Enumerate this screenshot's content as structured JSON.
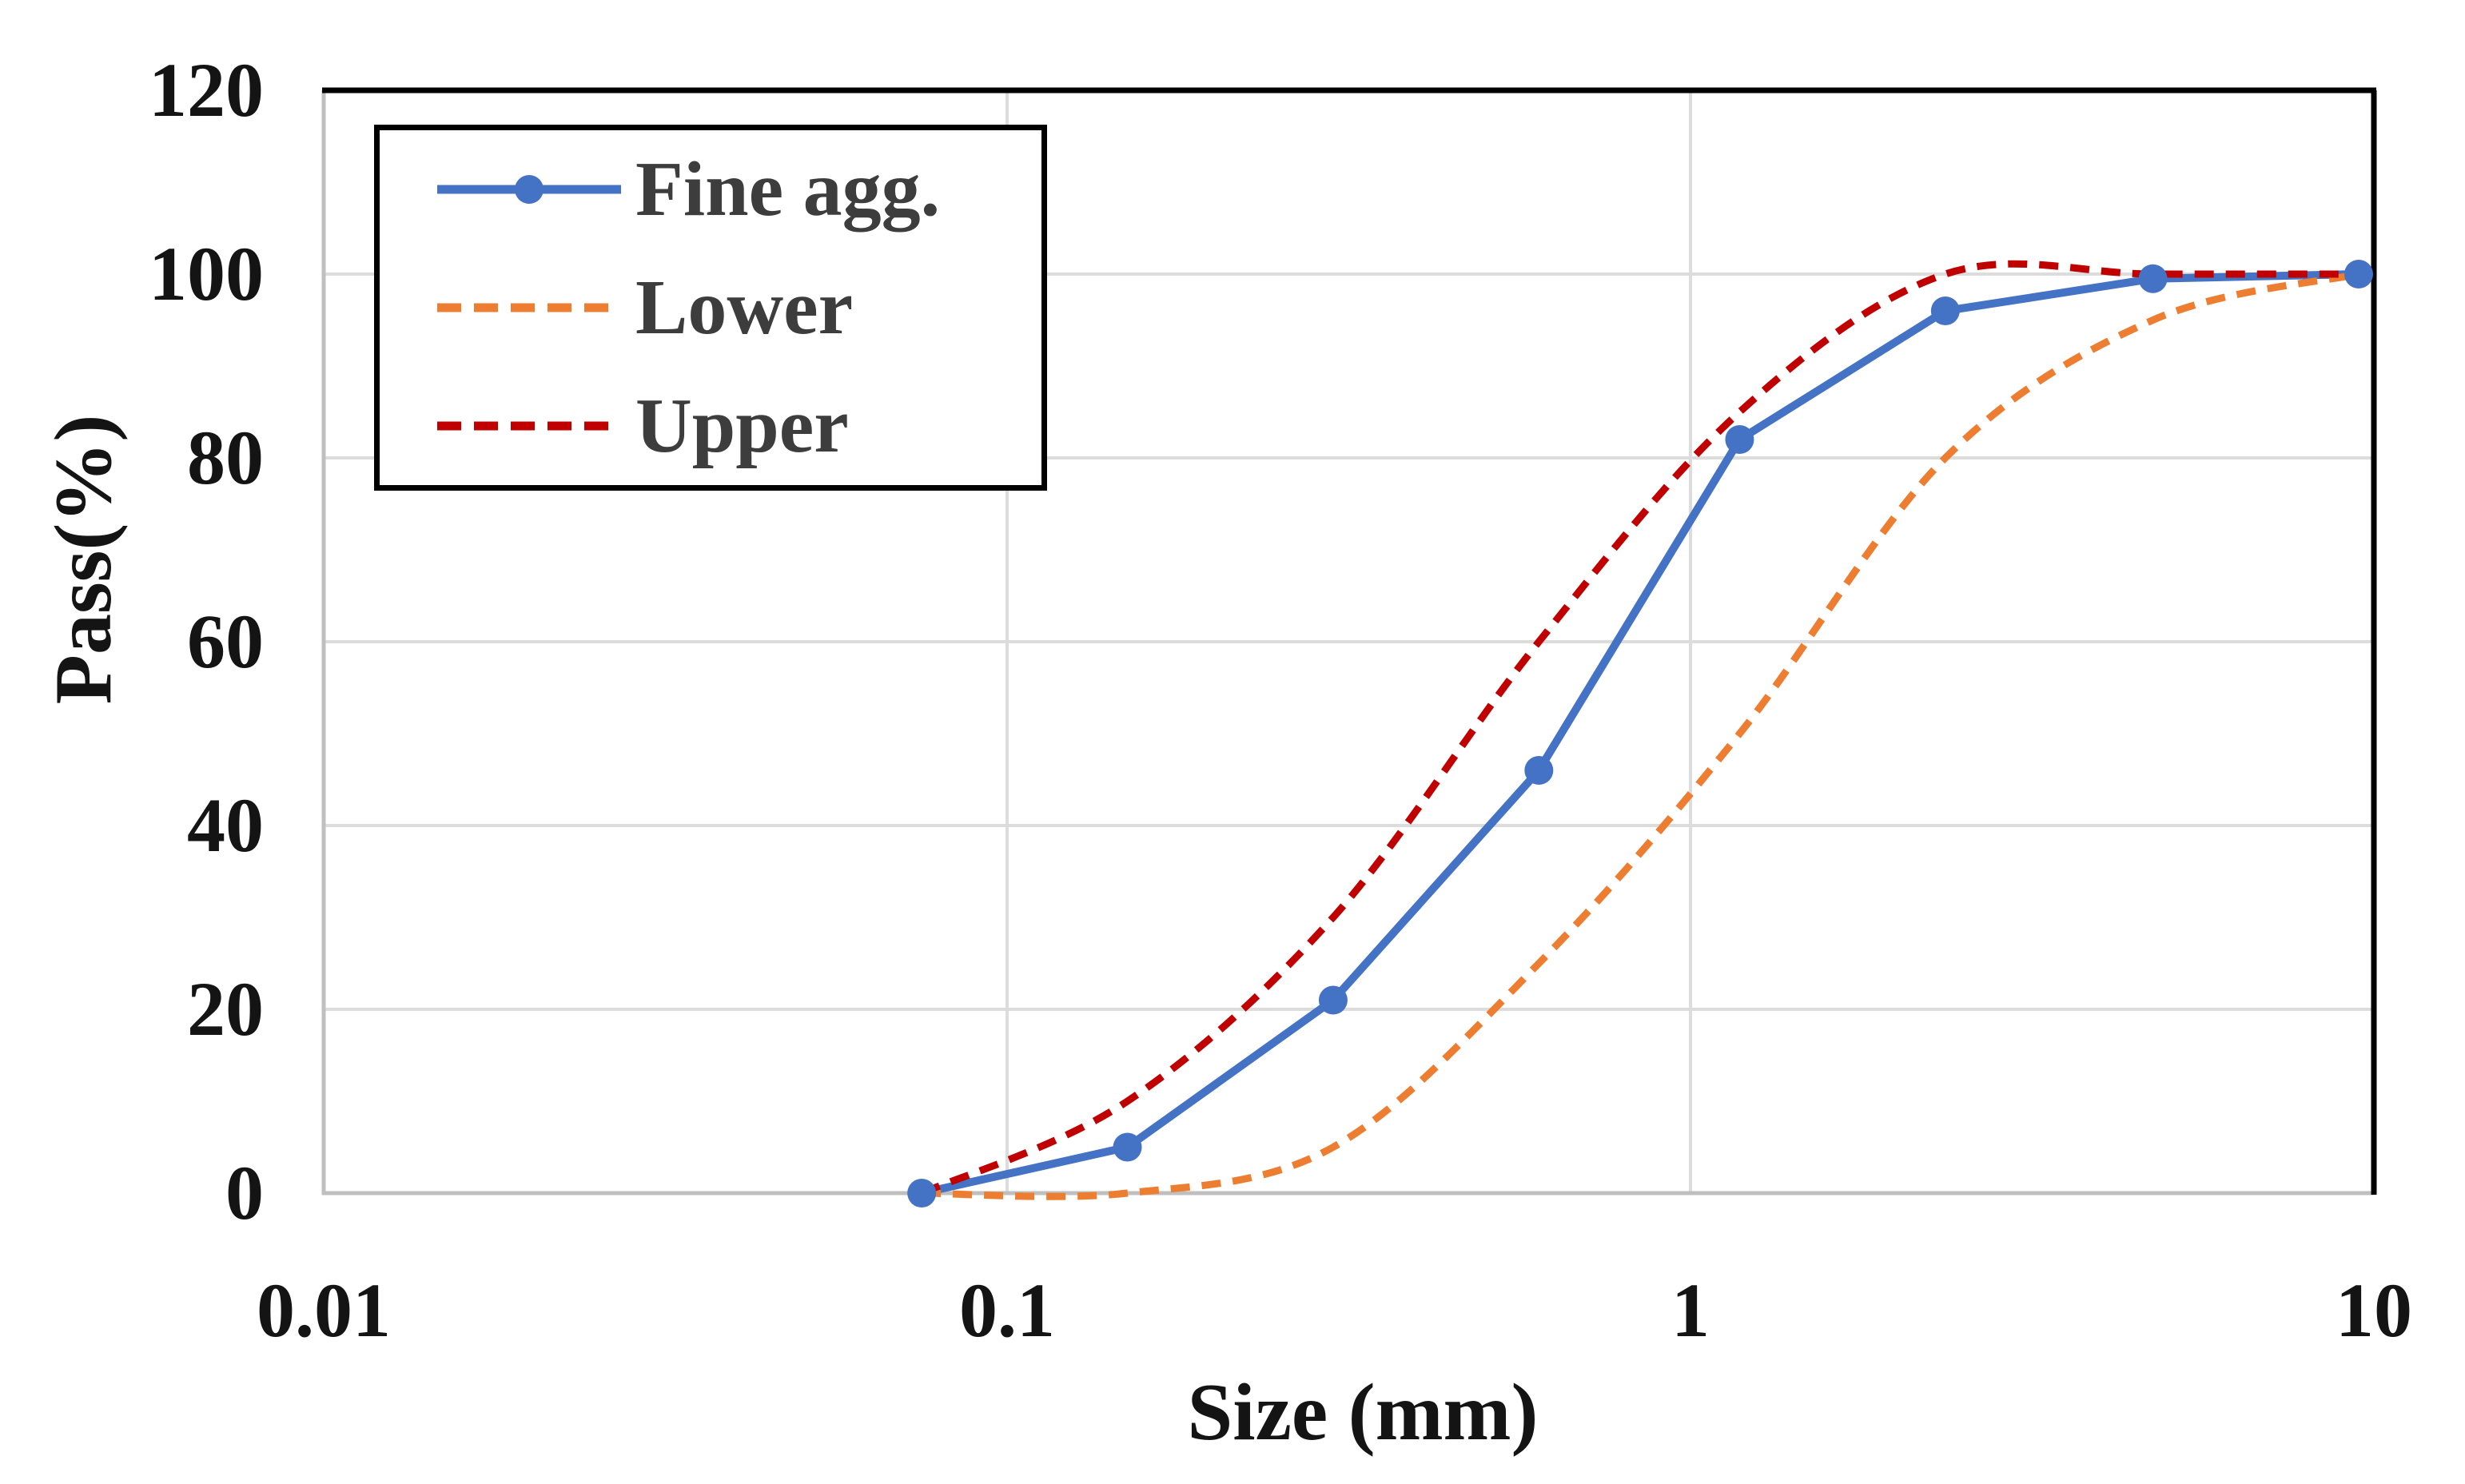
{
  "chart_data": {
    "type": "line",
    "title": "",
    "xlabel": "Size (mm)",
    "ylabel": "Pass(%)",
    "x_scale": "log",
    "xlim": [
      0.01,
      10
    ],
    "ylim": [
      0,
      120
    ],
    "x_ticks": [
      {
        "v": 0.01,
        "label": "0.01"
      },
      {
        "v": 0.1,
        "label": "0.1"
      },
      {
        "v": 1,
        "label": "1"
      },
      {
        "v": 10,
        "label": "10"
      }
    ],
    "y_ticks": [
      {
        "v": 0,
        "label": "0"
      },
      {
        "v": 20,
        "label": "20"
      },
      {
        "v": 40,
        "label": "40"
      },
      {
        "v": 60,
        "label": "60"
      },
      {
        "v": 80,
        "label": "80"
      },
      {
        "v": 100,
        "label": "100"
      },
      {
        "v": 120,
        "label": "120"
      }
    ],
    "x_gridlines": [
      0.1,
      1
    ],
    "y_gridlines": [
      20,
      40,
      60,
      80,
      100
    ],
    "grid_on": true,
    "legend_position": "top-left",
    "colors": {
      "fine_agg": "#4472C4",
      "lower": "#ED7D31",
      "upper": "#C00000",
      "gridline": "#DCDCDC",
      "axis_line": "#BFBFBF",
      "plot_border": "#000000",
      "tick_text": "#141414",
      "legend_text": "#3d3d3d"
    },
    "series": [
      {
        "name": "Fine agg.",
        "color": "#4472C4",
        "style": "solid",
        "marker": "circle",
        "smooth": false,
        "points": [
          [
            0.075,
            0
          ],
          [
            0.15,
            5
          ],
          [
            0.3,
            21
          ],
          [
            0.6,
            46
          ],
          [
            1.18,
            82
          ],
          [
            2.36,
            96
          ],
          [
            4.75,
            99.5
          ],
          [
            9.5,
            100
          ]
        ]
      },
      {
        "name": "Lower",
        "color": "#ED7D31",
        "style": "dashed",
        "marker": "none",
        "smooth": true,
        "points": [
          [
            0.075,
            0
          ],
          [
            0.15,
            0
          ],
          [
            0.3,
            5
          ],
          [
            0.6,
            25
          ],
          [
            1.18,
            50
          ],
          [
            2.36,
            80
          ],
          [
            4.75,
            95
          ],
          [
            9.5,
            100
          ]
        ]
      },
      {
        "name": "Upper",
        "color": "#C00000",
        "style": "dashed",
        "marker": "none",
        "smooth": true,
        "points": [
          [
            0.075,
            0
          ],
          [
            0.15,
            10
          ],
          [
            0.3,
            30
          ],
          [
            0.6,
            60
          ],
          [
            1.18,
            85
          ],
          [
            2.36,
            100
          ],
          [
            4.75,
            100
          ],
          [
            9.5,
            100
          ]
        ]
      }
    ]
  },
  "layout_text": {
    "x_axis_title": "Size (mm)",
    "y_axis_title": "Pass(%)"
  }
}
